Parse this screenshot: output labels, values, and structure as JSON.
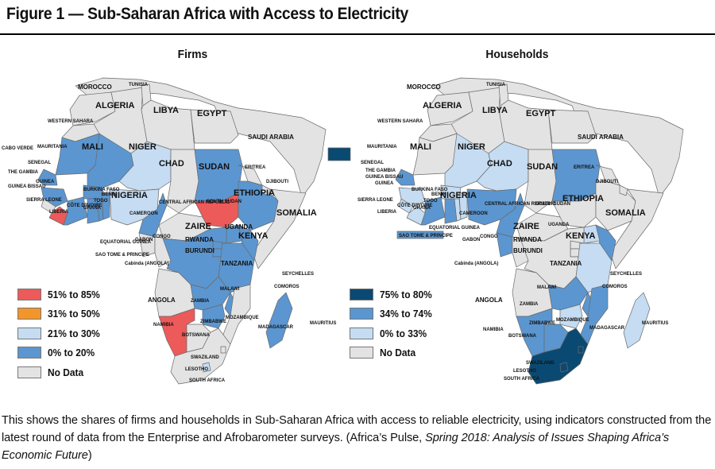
{
  "title": "Figure 1 — Sub-Saharan Africa with Access to Electricity",
  "colors": {
    "red": "#ec5a5a",
    "orange": "#f2962a",
    "light_blue": "#c5dcf2",
    "mid_blue": "#5b96d0",
    "dark_blue": "#0a4a72",
    "no_data": "#e3e3e3",
    "ocean": "#ffffff",
    "border": "#6a6a6a"
  },
  "firms": {
    "heading": "Firms",
    "legend": [
      {
        "label": "51% to 85%",
        "color": "#ec5a5a"
      },
      {
        "label": "31% to 50%",
        "color": "#f2962a"
      },
      {
        "label": "21% to 30%",
        "color": "#c5dcf2"
      },
      {
        "label": "0% to 20%",
        "color": "#5b96d0"
      },
      {
        "label": "No Data",
        "color": "#e3e3e3"
      }
    ]
  },
  "households": {
    "heading": "Households",
    "legend": [
      {
        "label": "75% to 80%",
        "color": "#0a4a72"
      },
      {
        "label": "34% to 74%",
        "color": "#5b96d0"
      },
      {
        "label": "0% to 33%",
        "color": "#c5dcf2"
      },
      {
        "label": "No Data",
        "color": "#e3e3e3"
      }
    ]
  },
  "labels": {
    "morocco": "MOROCCO",
    "tunisia": "TUNISIA",
    "algeria": "ALGERIA",
    "libya": "LIBYA",
    "egypt": "EGYPT",
    "saudi": "SAUDI ARABIA",
    "western_sahara": "WESTERN SAHARA",
    "mauritania": "MAURITANIA",
    "mali": "MALI",
    "niger": "NIGER",
    "chad": "CHAD",
    "sudan": "SUDAN",
    "eritrea": "ERITREA",
    "djibouti": "DJIBOUTI",
    "ethiopia": "ETHIOPIA",
    "somalia": "SOMALIA",
    "south_sudan": "SOUTH SUDAN",
    "car": "CENTRAL AFRICAN REPUBLIC",
    "nigeria": "NIGERIA",
    "cameroon": "CAMEROON",
    "senegal": "SENEGAL",
    "gambia": "THE GAMBIA",
    "guinea_bissau": "GUINEA BISSAU",
    "guinea": "GUINEA",
    "sierra_leone": "SIERRA LEONE",
    "liberia": "LIBERIA",
    "cote": "CÔTE D'IVOIRE",
    "burkina": "BURKINA FASO",
    "ghana": "GHANA",
    "togo": "TOGO",
    "benin": "BENIN",
    "cabo_verde": "CABO VERDE",
    "eq_guinea": "EQUATORIAL GUINEA",
    "sao_tome": "SAO TOME & PRINCIPE",
    "gabon": "GABON",
    "congo": "CONGO",
    "cabinda": "Cabinda (ANGOLA)",
    "zaire": "ZAIRE",
    "rwanda": "RWANDA",
    "burundi": "BURUNDI",
    "uganda": "UGANDA",
    "kenya": "KENYA",
    "tanzania": "TANZANIA",
    "seychelles": "SEYCHELLES",
    "comoros": "COMOROS",
    "angola": "ANGOLA",
    "malawi": "MALAWI",
    "zambia": "ZAMBIA",
    "mozambique": "MOZAMBIQUE",
    "zimbabwe": "ZIMBABWE",
    "madagascar": "MADAGASCAR",
    "mauritius": "MAURITIUS",
    "namibia": "NAMIBIA",
    "botswana": "BOTSWANA",
    "swaziland": "SWAZILAND",
    "lesotho": "LESOTHO",
    "south_africa": "SOUTH AFRICA"
  },
  "caption": {
    "text": "This shows the shares of firms and households in Sub-Saharan Africa with access to reliable electricity, using indicators constructed from the latest round of data from the Enterprise and Afrobarometer surveys. (Africa’s Pulse, ",
    "source_italic": "Spring 2018: Analysis of Issues Shaping Africa’s Economic Future",
    "close": ")"
  }
}
